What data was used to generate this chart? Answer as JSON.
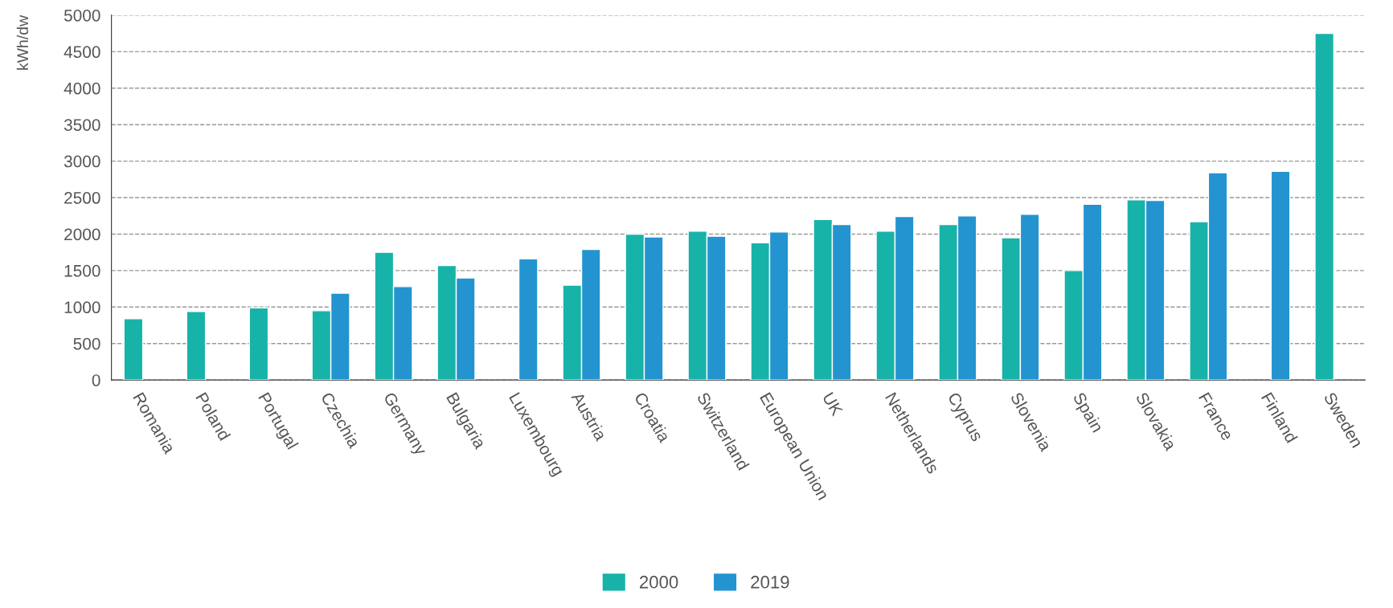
{
  "chart_data": {
    "type": "bar",
    "ylabel": "kWh/dw",
    "categories": [
      "Romania",
      "Poland",
      "Portugal",
      "Czechia",
      "Germany",
      "Bulgaria",
      "Luxembourg",
      "Austria",
      "Croatia",
      "Switzerland",
      "European Union",
      "UK",
      "Netherlands",
      "Cyprus",
      "Slovenia",
      "Spain",
      "Slovakia",
      "France",
      "Finland",
      "Sweden"
    ],
    "series": [
      {
        "name": "2000",
        "color": "#17b3a9",
        "values": [
          840,
          940,
          990,
          950,
          1750,
          1570,
          null,
          1300,
          2000,
          2040,
          1880,
          2200,
          2040,
          2130,
          1950,
          1500,
          2470,
          2170,
          null,
          4750
        ]
      },
      {
        "name": "2019",
        "color": "#2394cf",
        "values": [
          null,
          null,
          null,
          1190,
          1280,
          1400,
          1660,
          1790,
          1960,
          1970,
          2030,
          2130,
          2240,
          2250,
          2270,
          2410,
          2460,
          2840,
          2860,
          null
        ]
      }
    ],
    "ylim": [
      0,
      5000
    ],
    "yticks": [
      0,
      500,
      1000,
      1500,
      2000,
      2500,
      3000,
      3500,
      4000,
      4500,
      5000
    ],
    "grid": "y",
    "legend": "bottom"
  }
}
